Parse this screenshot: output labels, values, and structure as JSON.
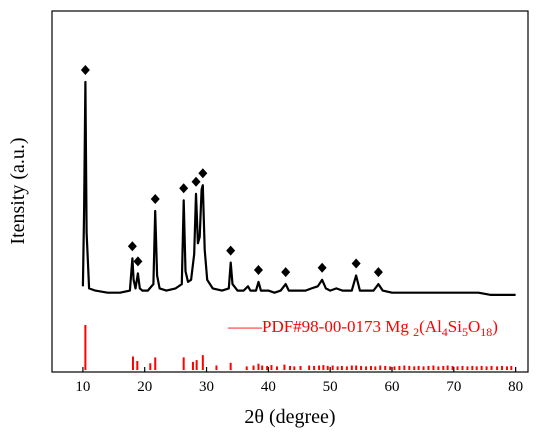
{
  "chart_data": {
    "type": "line",
    "title": "",
    "xlabel": "2θ (degree)",
    "ylabel": "Itensity (a.u.)",
    "xlim": [
      5,
      82
    ],
    "x_ticks": [
      10,
      20,
      30,
      40,
      50,
      60,
      70,
      80
    ],
    "y_ticks": "none",
    "grid": false,
    "colors": {
      "pattern": "#000000",
      "reference": "#ff0000"
    },
    "marker_icon": "diamond",
    "series": [
      {
        "values_note": "",
        "x": [
          10.0,
          10.2,
          10.4,
          10.6,
          11.0,
          12,
          14,
          16,
          17.6,
          18.0,
          18.2,
          18.5,
          18.9,
          19.2,
          19.6,
          20.5,
          21.4,
          21.7,
          22.0,
          22.4,
          23.5,
          25.0,
          26.0,
          26.3,
          26.6,
          27.0,
          27.5,
          28.0,
          28.3,
          28.6,
          28.9,
          29.2,
          29.4,
          29.7,
          30.1,
          31.0,
          32.5,
          33.6,
          33.9,
          34.2,
          35.0,
          36.0,
          36.7,
          37.1,
          38.0,
          38.4,
          38.8,
          40.0,
          41.0,
          42.0,
          42.8,
          43.3,
          44.5,
          46.0,
          47.0,
          48.0,
          48.7,
          49.3,
          50.0,
          51.0,
          52.0,
          53.5,
          54.2,
          54.8,
          56.0,
          57.0,
          57.8,
          58.5,
          60.0,
          62.0,
          64.0,
          66.0,
          67.0,
          68.0,
          70.0,
          72.0,
          74.0,
          76.0,
          78.0,
          80.0
        ],
        "y": [
          5,
          40,
          100,
          30,
          4,
          3,
          2,
          2,
          3,
          18,
          8,
          4,
          11,
          4,
          3,
          3,
          6,
          40,
          10,
          4,
          3,
          4,
          6,
          45,
          12,
          7,
          8,
          20,
          48,
          25,
          28,
          50,
          52,
          22,
          8,
          4,
          3,
          4,
          16,
          6,
          3,
          3,
          5,
          3,
          3,
          7,
          3,
          3,
          2,
          3,
          6,
          3,
          3,
          3,
          4,
          5,
          8,
          4,
          3,
          4,
          3,
          3,
          10,
          3,
          3,
          3,
          6,
          3,
          2,
          2,
          2,
          2,
          2,
          2,
          2,
          2,
          2,
          1,
          1,
          1
        ]
      }
    ],
    "peak_markers_x": [
      10.4,
      18.0,
      18.9,
      21.7,
      26.3,
      28.3,
      29.4,
      33.9,
      38.4,
      42.8,
      48.7,
      54.2,
      57.8
    ],
    "reference": {
      "label_prefix": "——PDF#98-00-0173 Mg",
      "formula_parts": [
        {
          "text": "2",
          "sub": true
        },
        {
          "text": "(Al",
          "sub": false
        },
        {
          "text": "4",
          "sub": true
        },
        {
          "text": "Si",
          "sub": false
        },
        {
          "text": "5",
          "sub": true
        },
        {
          "text": "O",
          "sub": false
        },
        {
          "text": "18",
          "sub": true
        },
        {
          "text": ")",
          "sub": false
        }
      ],
      "positions": [
        10.4,
        18.1,
        18.8,
        20.9,
        21.7,
        26.3,
        27.8,
        28.4,
        29.4,
        31.6,
        33.9,
        36.5,
        37.6,
        38.4,
        39.0,
        39.8,
        40.5,
        41.4,
        42.6,
        43.5,
        44.2,
        45.2,
        46.6,
        47.4,
        48.2,
        48.9,
        49.6,
        50.4,
        51.2,
        51.9,
        52.7,
        53.5,
        54.2,
        55.0,
        55.8,
        56.6,
        57.3,
        58.1,
        58.9,
        59.7,
        60.4,
        61.2,
        62.0,
        62.8,
        63.6,
        64.3,
        65.1,
        65.9,
        66.7,
        67.5,
        68.3,
        69.0,
        69.8,
        70.6,
        71.4,
        72.2,
        73.0,
        73.7,
        74.5,
        75.3,
        76.1,
        77.0,
        77.8,
        78.6,
        79.3
      ],
      "intensities": [
        100,
        30,
        20,
        15,
        28,
        28,
        18,
        22,
        33,
        10,
        16,
        8,
        10,
        14,
        10,
        9,
        11,
        8,
        12,
        9,
        8,
        9,
        10,
        9,
        10,
        11,
        9,
        10,
        8,
        9,
        8,
        10,
        10,
        9,
        8,
        9,
        8,
        10,
        9,
        8,
        8,
        9,
        10,
        9,
        8,
        9,
        8,
        9,
        10,
        8,
        9,
        10,
        9,
        8,
        9,
        8,
        9,
        8,
        9,
        8,
        9,
        8,
        9,
        8,
        9
      ]
    }
  }
}
